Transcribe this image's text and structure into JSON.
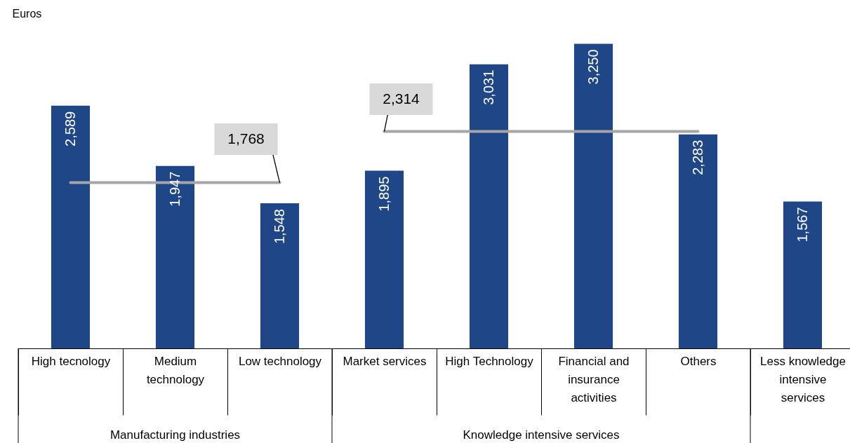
{
  "chart_data": {
    "type": "bar",
    "ylabel": "Euros",
    "categories": [
      "High tecnology",
      "Medium technology",
      "Low technology",
      "Market services",
      "High Technology",
      "Financial and insurance activities",
      "Others",
      "Less knowledge intensive services"
    ],
    "series": [
      {
        "color": "#1f4788",
        "values": [
          2589,
          1947,
          1548,
          1895,
          3031,
          3250,
          2283,
          1567
        ],
        "value_labels": [
          "2,589",
          "1,947",
          "1,548",
          "1,895",
          "3,031",
          "3,250",
          "2,283",
          "1,567"
        ]
      },
      {
        "type": "line",
        "color": "#a6a6a6",
        "values": [
          1768,
          1768,
          1768,
          null,
          null,
          null,
          null,
          null
        ],
        "value_labels": [
          null,
          null,
          "1,768",
          null,
          null,
          null,
          null,
          null
        ]
      },
      {
        "type": "line",
        "color": "#a6a6a6",
        "values": [
          null,
          null,
          null,
          2314,
          2314,
          2314,
          2314,
          null
        ],
        "value_labels": [
          null,
          null,
          null,
          "2,314",
          null,
          null,
          null,
          null
        ]
      }
    ],
    "annotations": [
      "Manufacturing industries",
      "Knowledge intensive services"
    ]
  }
}
